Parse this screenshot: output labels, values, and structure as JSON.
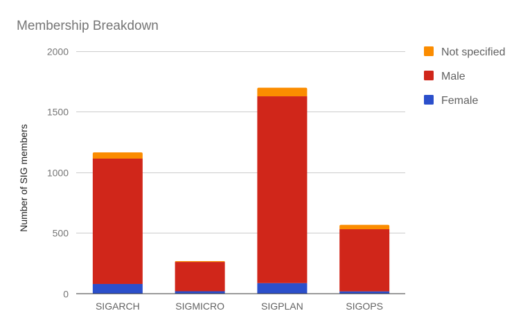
{
  "chart_data": {
    "type": "bar",
    "stacked": true,
    "title": "Membership Breakdown",
    "xlabel": "",
    "ylabel": "Number of SIG members",
    "ylim": [
      0,
      2000
    ],
    "yticks": [
      0,
      500,
      1000,
      1500,
      2000
    ],
    "grid": true,
    "legend_position": "right",
    "categories": [
      "SIGARCH",
      "SIGMICRO",
      "SIGPLAN",
      "SIGOPS"
    ],
    "series": [
      {
        "name": "Female",
        "color": "#2B4FCB",
        "values": [
          80,
          20,
          87,
          19
        ]
      },
      {
        "name": "Male",
        "color": "#D0261A",
        "values": [
          1033,
          242,
          1539,
          512
        ]
      },
      {
        "name": "Not specified",
        "color": "#FB8C00",
        "values": [
          51,
          6,
          71,
          36
        ]
      }
    ]
  },
  "legend": {
    "items": [
      {
        "label": "Not specified",
        "color": "#FB8C00"
      },
      {
        "label": "Male",
        "color": "#D0261A"
      },
      {
        "label": "Female",
        "color": "#2B4FCB"
      }
    ]
  }
}
